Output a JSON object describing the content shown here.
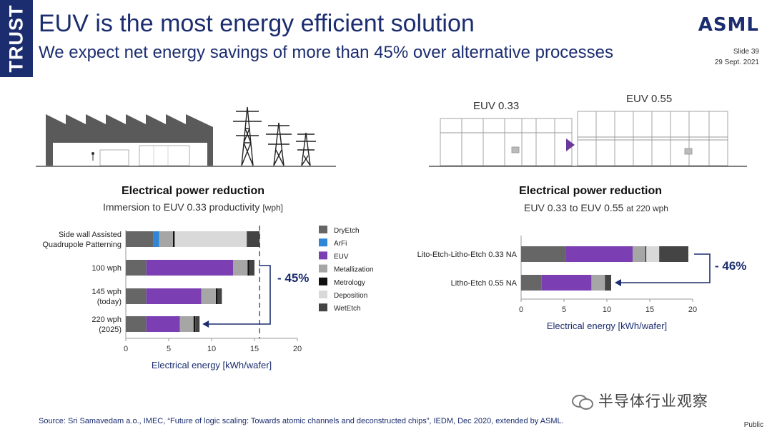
{
  "header": {
    "tag": "TRUST",
    "title": "EUV is the most energy efficient solution",
    "subtitle": "We expect net energy savings of more than 45% over alternative processes",
    "logo": "ASML",
    "slide": "Slide 39",
    "date": "29 Sept. 2021"
  },
  "illustration": {
    "euv033_label": "EUV 0.33",
    "euv055_label": "EUV 0.55"
  },
  "legend": [
    {
      "name": "DryEtch",
      "color": "#666666"
    },
    {
      "name": "ArFi",
      "color": "#2f86d6"
    },
    {
      "name": "EUV",
      "color": "#7b3fb3"
    },
    {
      "name": "Metallization",
      "color": "#a6a6a6"
    },
    {
      "name": "Metrology",
      "color": "#111111"
    },
    {
      "name": "Deposition",
      "color": "#d9d9d9"
    },
    {
      "name": "WetEtch",
      "color": "#444444"
    }
  ],
  "chart_data": [
    {
      "type": "bar",
      "orientation": "horizontal",
      "stacked": true,
      "title": "Electrical power reduction",
      "subtitle": "Immersion to EUV 0.33 productivity",
      "subtitle_unit": "[wph]",
      "categories": [
        "Side wall Assisted\nQuadrupole Patterning",
        "100 wph",
        "145 wph\n(today)",
        "220 wph\n(2025)"
      ],
      "series": [
        {
          "name": "DryEtch",
          "values": [
            3.2,
            2.4,
            2.4,
            2.4
          ]
        },
        {
          "name": "ArFi",
          "values": [
            0.7,
            0,
            0,
            0
          ]
        },
        {
          "name": "EUV",
          "values": [
            0,
            10.1,
            6.4,
            3.9
          ]
        },
        {
          "name": "Metallization",
          "values": [
            1.6,
            1.7,
            1.7,
            1.6
          ]
        },
        {
          "name": "Metrology",
          "values": [
            0.2,
            0.2,
            0.2,
            0.2
          ]
        },
        {
          "name": "Deposition",
          "values": [
            8.4,
            0,
            0,
            0
          ]
        },
        {
          "name": "WetEtch",
          "values": [
            1.5,
            0.6,
            0.5,
            0.5
          ]
        }
      ],
      "xlabel": "Electrical energy [kWh/wafer]",
      "xlim": [
        0,
        20
      ],
      "xticks": [
        "0",
        "5",
        "10",
        "15",
        "20"
      ],
      "reference_line": 15.6,
      "annotation": "- 45%"
    },
    {
      "type": "bar",
      "orientation": "horizontal",
      "stacked": true,
      "title": "Electrical power reduction",
      "subtitle": "EUV 0.33 to EUV 0.55",
      "subtitle_unit": "at 220 wph",
      "categories": [
        "Lito-Etch-Litho-Etch 0.33 NA",
        "Litho-Etch 0.55 NA"
      ],
      "series": [
        {
          "name": "DryEtch",
          "values": [
            5.2,
            2.4
          ]
        },
        {
          "name": "ArFi",
          "values": [
            0,
            0
          ]
        },
        {
          "name": "EUV",
          "values": [
            7.8,
            5.8
          ]
        },
        {
          "name": "Metallization",
          "values": [
            1.5,
            1.6
          ]
        },
        {
          "name": "Metrology",
          "values": [
            0.1,
            0.1
          ]
        },
        {
          "name": "Deposition",
          "values": [
            1.5,
            0
          ]
        },
        {
          "name": "WetEtch",
          "values": [
            3.4,
            0.6
          ]
        }
      ],
      "xlabel": "Electrical energy [kWh/wafer]",
      "xlim": [
        0,
        20
      ],
      "xticks": [
        "0",
        "5",
        "10",
        "15",
        "20"
      ],
      "annotation": "- 46%"
    }
  ],
  "footer": {
    "source": "Source: Sri Samavedam a.o., IMEC, “Future of logic scaling: Towards atomic channels and deconstructed chips”, IEDM, Dec 2020, extended by ASML.",
    "classification": "Public",
    "watermark": "半导体行业观察"
  }
}
